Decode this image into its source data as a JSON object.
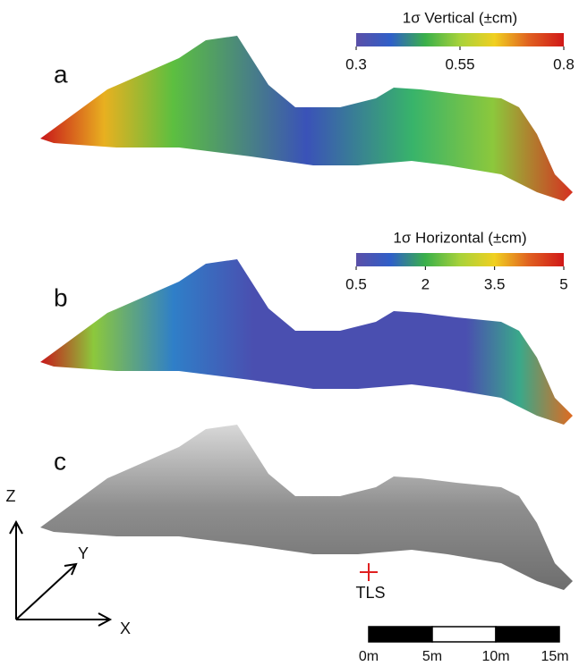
{
  "panels": [
    {
      "label": "a",
      "colorbar": {
        "title": "1σ Vertical (±cm)",
        "lim": [
          0.3,
          0.8
        ],
        "ticks": [
          0.3,
          0.55,
          0.8
        ],
        "colors": [
          "#5a4fa8",
          "#2f5fc8",
          "#3ab04a",
          "#a8d23a",
          "#f0d020",
          "#e06020",
          "#d01818"
        ]
      }
    },
    {
      "label": "b",
      "colorbar": {
        "title": "1σ Horizontal (±cm)",
        "lim": [
          0.5,
          5
        ],
        "ticks": [
          0.5,
          2,
          3.5,
          5
        ],
        "colors": [
          "#5a4fa8",
          "#2f5fc8",
          "#3ab04a",
          "#a8d23a",
          "#f0d020",
          "#e06020",
          "#d01818"
        ]
      }
    },
    {
      "label": "c"
    }
  ],
  "axes": {
    "x": "X",
    "y": "Y",
    "z": "Z"
  },
  "marker": "TLS",
  "scale_bar": {
    "labels": [
      "0m",
      "5m",
      "10m",
      "15m"
    ]
  }
}
